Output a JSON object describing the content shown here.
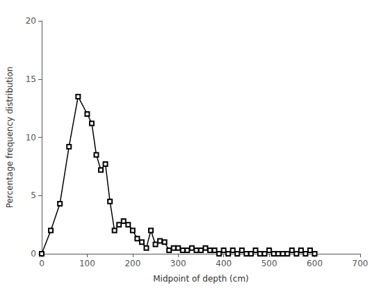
{
  "chart_data": {
    "type": "line",
    "x": [
      0,
      20,
      40,
      60,
      80,
      100,
      110,
      120,
      130,
      140,
      150,
      160,
      170,
      180,
      190,
      200,
      210,
      220,
      230,
      240,
      250,
      260,
      270,
      280,
      290,
      300,
      310,
      320,
      330,
      340,
      350,
      360,
      370,
      380,
      390,
      400,
      410,
      420,
      430,
      440,
      450,
      460,
      470,
      480,
      490,
      500,
      510,
      520,
      530,
      540,
      550,
      560,
      570,
      580,
      590,
      600
    ],
    "values": [
      0,
      2.0,
      4.3,
      9.2,
      13.5,
      12.0,
      11.2,
      8.5,
      7.2,
      7.7,
      4.5,
      2.0,
      2.5,
      2.8,
      2.5,
      2.0,
      1.3,
      1.0,
      0.5,
      2.0,
      0.8,
      1.1,
      1.0,
      0.3,
      0.5,
      0.5,
      0.3,
      0.3,
      0.5,
      0.3,
      0.3,
      0.5,
      0.3,
      0.3,
      0.0,
      0.3,
      0.0,
      0.3,
      0.0,
      0.3,
      0.0,
      0.0,
      0.3,
      0.0,
      0.0,
      0.3,
      0.0,
      0.0,
      0.0,
      0.0,
      0.3,
      0.0,
      0.3,
      0.0,
      0.3,
      0.0
    ],
    "xlabel": "Midpoint of depth (cm)",
    "ylabel": "Percentage frequency distribution",
    "xlim": [
      0,
      700
    ],
    "ylim": [
      0,
      20
    ],
    "xticks": [
      0,
      100,
      200,
      300,
      400,
      500,
      600,
      700
    ],
    "yticks": [
      0,
      5,
      10,
      15,
      20
    ],
    "color": "#000000",
    "marker": "square",
    "grid": false
  }
}
